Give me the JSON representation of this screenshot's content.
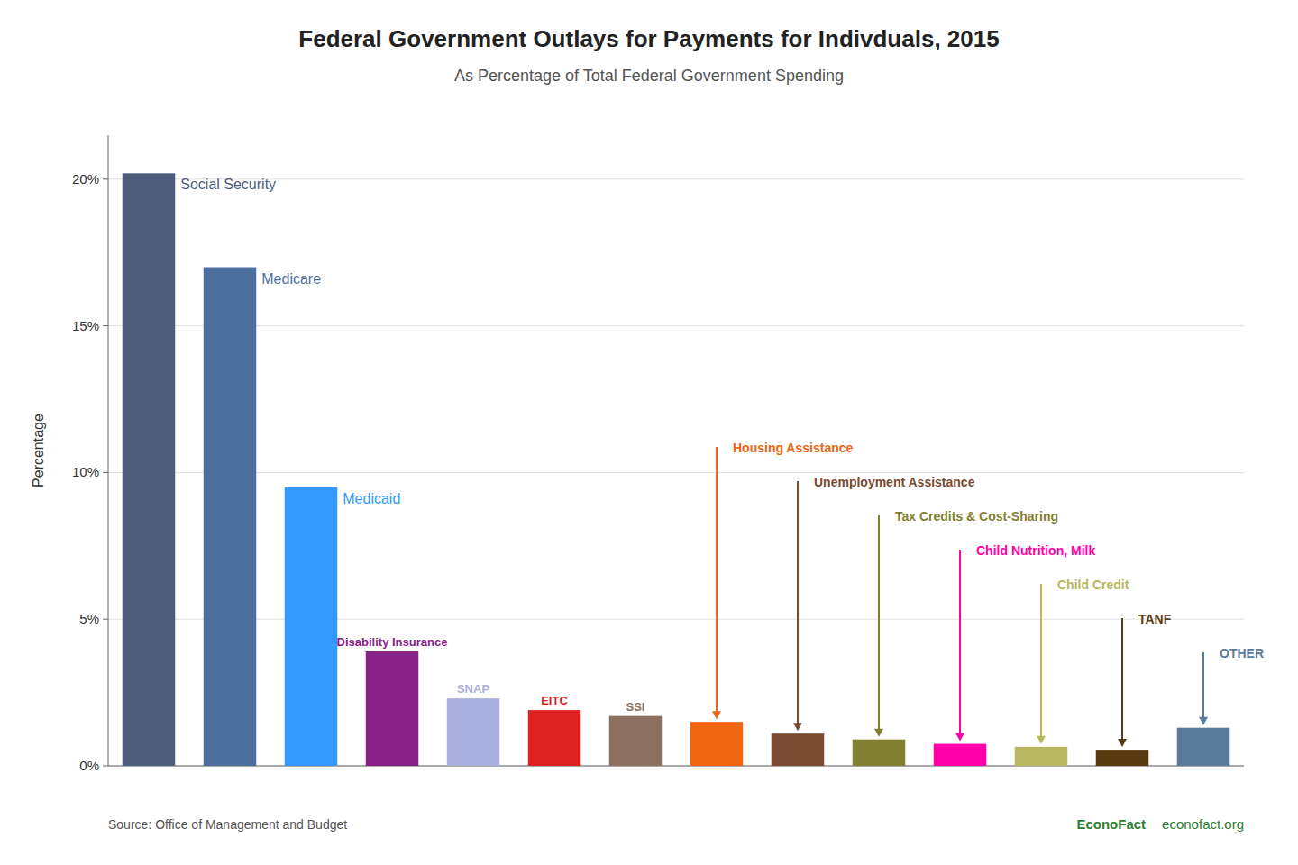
{
  "chart_data": {
    "type": "bar",
    "title": "Federal Government Outlays for Payments for Indivduals, 2015",
    "subtitle": "As Percentage of Total Federal Government Spending",
    "y_label": "Percentage",
    "categories": [
      "Social Security",
      "Medicare",
      "Medicaid",
      "Disability Insurance",
      "SNAP",
      "EITC",
      "SSI",
      "Housing Assistance",
      "Unemployment Assistance",
      "Tax Credits & Cost-Sharing",
      "Child Nutrition, Milk",
      "Child Credit",
      "TANF",
      "OTHER"
    ],
    "values": [
      20.2,
      17.0,
      9.5,
      3.9,
      2.3,
      1.9,
      1.7,
      1.5,
      1.1,
      0.9,
      0.75,
      0.65,
      0.55,
      1.3
    ],
    "colors": [
      "#4d5f7c",
      "#4d6fa0",
      "#3399ff",
      "#882288",
      "#aab0dd",
      "#dd2222",
      "#8b7060",
      "#ee6611",
      "#7a4a30",
      "#808030",
      "#ff00aa",
      "#b8b860",
      "#5a3a10",
      "#5a7a9a"
    ],
    "ylim": [
      0,
      21.5
    ],
    "yticks": [
      {
        "value": 0,
        "label": "0%"
      },
      {
        "value": 5,
        "label": "5%"
      },
      {
        "value": 10,
        "label": "10%"
      },
      {
        "value": 15,
        "label": "15%"
      },
      {
        "value": 20,
        "label": "20%"
      }
    ],
    "grid": true,
    "tick_labels": "y",
    "annotations": [
      "Source: Office of Management and Budget",
      "EconoFact",
      "econofact.org"
    ]
  }
}
